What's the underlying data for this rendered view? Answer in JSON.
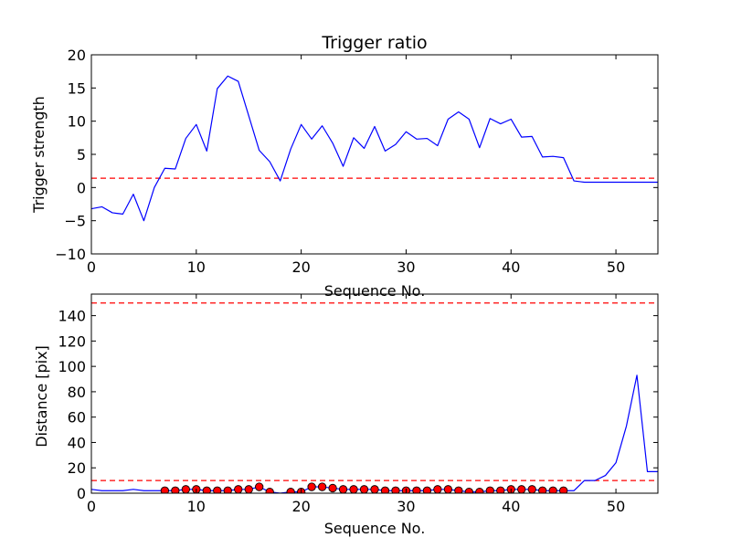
{
  "colors": {
    "line": "#0000ff",
    "threshold": "#ff0000",
    "marker_fill": "#ff0000",
    "marker_edge": "#000000",
    "axes": "#000000",
    "background": "#ffffff"
  },
  "chart_data": [
    {
      "type": "line",
      "title": "Trigger ratio",
      "xlabel": "Sequence No.",
      "ylabel": "Trigger strength",
      "xlim": [
        0,
        54
      ],
      "ylim": [
        -10,
        20
      ],
      "xticks": [
        0,
        10,
        20,
        30,
        40,
        50
      ],
      "yticks": [
        -10,
        -5,
        0,
        5,
        10,
        15,
        20
      ],
      "xtick_labels": [
        "0",
        "10",
        "20",
        "30",
        "40",
        "50"
      ],
      "ytick_labels": [
        "−10",
        "−5",
        "0",
        "5",
        "10",
        "15",
        "20"
      ],
      "grid": false,
      "series": [
        {
          "style": "solid-blue",
          "x": [
            0,
            1,
            2,
            3,
            4,
            5,
            6,
            7,
            8,
            9,
            10,
            11,
            12,
            13,
            14,
            15,
            16,
            17,
            18,
            19,
            20,
            21,
            22,
            23,
            24,
            25,
            26,
            27,
            28,
            29,
            30,
            31,
            32,
            33,
            34,
            35,
            36,
            37,
            38,
            39,
            40,
            41,
            42,
            43,
            44,
            45,
            46,
            47,
            48,
            49,
            50,
            51,
            52,
            53,
            54
          ],
          "y": [
            -3.2,
            -2.9,
            -3.8,
            -4.0,
            -1.0,
            -5.0,
            0.0,
            2.9,
            2.8,
            7.4,
            9.5,
            5.5,
            14.9,
            16.8,
            16.0,
            10.8,
            5.6,
            3.9,
            1.0,
            5.8,
            9.5,
            7.3,
            9.3,
            6.7,
            3.2,
            7.5,
            5.9,
            9.2,
            5.5,
            6.5,
            8.4,
            7.3,
            7.4,
            6.3,
            10.3,
            11.4,
            10.3,
            6.0,
            10.4,
            9.6,
            10.3,
            7.6,
            7.7,
            4.6,
            4.7,
            4.5,
            1.0,
            0.8,
            0.8,
            0.8,
            0.8,
            0.8,
            0.8,
            0.8,
            0.8
          ]
        }
      ],
      "threshold_lines": [
        1.4
      ]
    },
    {
      "type": "line",
      "title": "",
      "xlabel": "Sequence No.",
      "ylabel": "Distance [pix]",
      "xlim": [
        0,
        54
      ],
      "ylim": [
        0,
        157
      ],
      "xticks": [
        0,
        10,
        20,
        30,
        40,
        50
      ],
      "yticks": [
        0,
        20,
        40,
        60,
        80,
        100,
        120,
        140
      ],
      "xtick_labels": [
        "0",
        "10",
        "20",
        "30",
        "40",
        "50"
      ],
      "ytick_labels": [
        "0",
        "20",
        "40",
        "60",
        "80",
        "100",
        "120",
        "140"
      ],
      "grid": false,
      "series": [
        {
          "style": "solid-blue",
          "x": [
            0,
            1,
            2,
            3,
            4,
            5,
            6,
            7,
            8,
            9,
            10,
            11,
            12,
            13,
            14,
            15,
            16,
            17,
            18,
            19,
            20,
            21,
            22,
            23,
            24,
            25,
            26,
            27,
            28,
            29,
            30,
            31,
            32,
            33,
            34,
            35,
            36,
            37,
            38,
            39,
            40,
            41,
            42,
            43,
            44,
            45,
            46,
            47,
            48,
            49,
            50,
            51,
            52,
            53,
            54
          ],
          "y": [
            3,
            2,
            2,
            2,
            3,
            2,
            2,
            2,
            2,
            3,
            3,
            2,
            2,
            2,
            3,
            3,
            5,
            1,
            0,
            1,
            1,
            5,
            5,
            4,
            3,
            3,
            3,
            3,
            2,
            2,
            2,
            2,
            2,
            3,
            3,
            2,
            1,
            1,
            2,
            2,
            3,
            3,
            3,
            2,
            2,
            2,
            2,
            10,
            10,
            14,
            24,
            53,
            93,
            17,
            17
          ]
        },
        {
          "style": "red-markers",
          "x": [
            7,
            8,
            9,
            10,
            11,
            12,
            13,
            14,
            15,
            16,
            17,
            19,
            20,
            21,
            22,
            23,
            24,
            25,
            26,
            27,
            28,
            29,
            30,
            31,
            32,
            33,
            34,
            35,
            36,
            37,
            38,
            39,
            40,
            41,
            42,
            43,
            44,
            45
          ],
          "y": [
            2,
            2,
            3,
            3,
            2,
            2,
            2,
            3,
            3,
            5,
            1,
            1,
            1,
            5,
            5,
            4,
            3,
            3,
            3,
            3,
            2,
            2,
            2,
            2,
            2,
            3,
            3,
            2,
            1,
            1,
            2,
            2,
            3,
            3,
            3,
            2,
            2,
            2
          ]
        }
      ],
      "threshold_lines": [
        10,
        150
      ]
    }
  ]
}
